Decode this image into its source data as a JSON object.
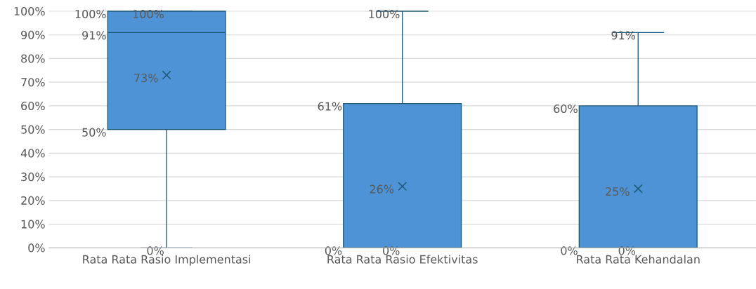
{
  "chart_data": {
    "type": "box",
    "categories": [
      "Rata Rata Rasio Implementasi",
      "Rata Rata Rasio Efektivitas",
      "Rata Rata Kehandalan"
    ],
    "series": [
      {
        "color": "#4e93d6",
        "boxes": [
          {
            "low": 0,
            "q1": 50,
            "median": 91,
            "q3": 100,
            "high": 100,
            "mean": 73
          },
          {
            "low": 0,
            "q1": 0,
            "median": 0,
            "q3": 61,
            "high": 100,
            "mean": 26
          },
          {
            "low": 0,
            "q1": 0,
            "median": 0,
            "q3": 60,
            "high": 91,
            "mean": 25
          }
        ]
      }
    ],
    "ylim": [
      0,
      100
    ],
    "yticks": [
      {
        "value": 0,
        "label": "0%"
      },
      {
        "value": 10,
        "label": "10%"
      },
      {
        "value": 20,
        "label": "20%"
      },
      {
        "value": 30,
        "label": "30%"
      },
      {
        "value": 40,
        "label": "40%"
      },
      {
        "value": 50,
        "label": "50%"
      },
      {
        "value": 60,
        "label": "60%"
      },
      {
        "value": 70,
        "label": "70%"
      },
      {
        "value": 80,
        "label": "80%"
      },
      {
        "value": 90,
        "label": "90%"
      },
      {
        "value": 100,
        "label": "100%"
      }
    ],
    "grid": "y",
    "marker": "cross",
    "annotations": [
      "100%",
      "100%",
      "91%",
      "50%",
      "0%",
      "73%",
      "100%",
      "61%",
      "0%",
      "0%",
      "26%",
      "91%",
      "60%",
      "0%",
      "0%",
      "25%"
    ]
  }
}
